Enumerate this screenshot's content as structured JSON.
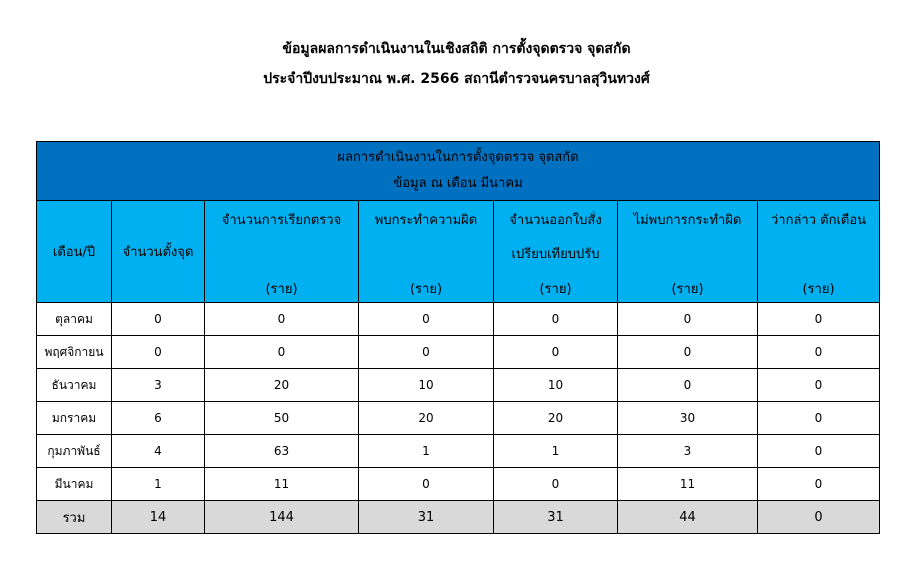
{
  "title": {
    "line1": "ข้อมูลผลการดำเนินงานในเชิงสถิติ การตั้งจุดตรวจ จุดสกัด",
    "line2": "ประจำปีงบประมาณ พ.ศ. 2566 สถานีตำรวจนครบาลสุวินทวงศ์"
  },
  "table": {
    "caption1": "ผลการดำเนินงานในการตั้งจุดตรวจ จุดสกัด",
    "caption2": "ข้อมูล ณ เดือน มีนาคม",
    "colors": {
      "caption_bg": "#0070C0",
      "header_bg": "#00B0F0",
      "total_bg": "#D9D9D9"
    },
    "headers": [
      {
        "l1": "เดือน/ปี"
      },
      {
        "l1": "จำนวนตั้งจุด"
      },
      {
        "l1": "จำนวนการเรียกตรวจ",
        "unit": "(ราย)"
      },
      {
        "l1": "พบกระทำความผิด",
        "unit": "(ราย)"
      },
      {
        "l1": "จำนวนออกใบสั่ง",
        "l2": "เปรียบเทียบปรับ",
        "unit": "(ราย)"
      },
      {
        "l1": "ไม่พบการกระทำผิด",
        "unit": "(ราย)"
      },
      {
        "l1": "ว่ากล่าว ตักเตือน",
        "unit": "(ราย)"
      }
    ],
    "rows": [
      [
        "ตุลาคม",
        "0",
        "0",
        "0",
        "0",
        "0",
        "0"
      ],
      [
        "พฤศจิกายน",
        "0",
        "0",
        "0",
        "0",
        "0",
        "0"
      ],
      [
        "ธันวาคม",
        "3",
        "20",
        "10",
        "10",
        "0",
        "0"
      ],
      [
        "มกราคม",
        "6",
        "50",
        "20",
        "20",
        "30",
        "0"
      ],
      [
        "กุมภาพันธ์",
        "4",
        "63",
        "1",
        "1",
        "3",
        "0"
      ],
      [
        "มีนาคม",
        "1",
        "11",
        "0",
        "0",
        "11",
        "0"
      ]
    ],
    "total": [
      "รวม",
      "14",
      "144",
      "31",
      "31",
      "44",
      "0"
    ]
  }
}
